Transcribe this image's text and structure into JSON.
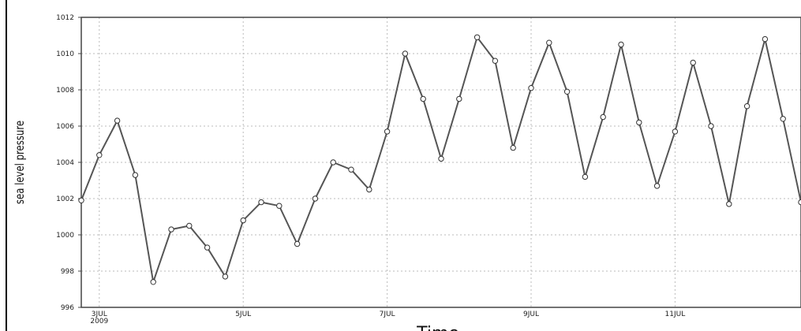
{
  "chart_data": {
    "type": "line",
    "title": "",
    "xlabel": "Time",
    "ylabel": "sea level pressure",
    "ylim": [
      996,
      1012
    ],
    "yticks": [
      996,
      998,
      1000,
      1002,
      1004,
      1006,
      1008,
      1010,
      1012
    ],
    "grid": true,
    "x_ticks": [
      {
        "label": "3JUL",
        "sublabel": "2009",
        "t": 1
      },
      {
        "label": "5JUL",
        "sublabel": "",
        "t": 9
      },
      {
        "label": "7JUL",
        "sublabel": "",
        "t": 17
      },
      {
        "label": "9JUL",
        "sublabel": "",
        "t": 25
      },
      {
        "label": "11JUL",
        "sublabel": "",
        "t": 33
      }
    ],
    "series": [
      {
        "values": [
          1001.9,
          1004.4,
          1006.3,
          1003.3,
          997.4,
          1000.3,
          1000.5,
          999.3,
          997.7,
          1000.8,
          1001.8,
          1001.6,
          999.5,
          1002.0,
          1004.0,
          1003.6,
          1002.5,
          1005.7,
          1010.0,
          1007.5,
          1004.2,
          1007.5,
          1010.9,
          1009.6,
          1004.8,
          1008.1,
          1010.6,
          1007.9,
          1003.2,
          1006.5,
          1010.5,
          1006.2,
          1002.7,
          1005.7,
          1009.5,
          1006.0,
          1001.7,
          1007.1,
          1010.8,
          1006.4,
          1001.8
        ],
        "color": "#555555"
      }
    ]
  }
}
